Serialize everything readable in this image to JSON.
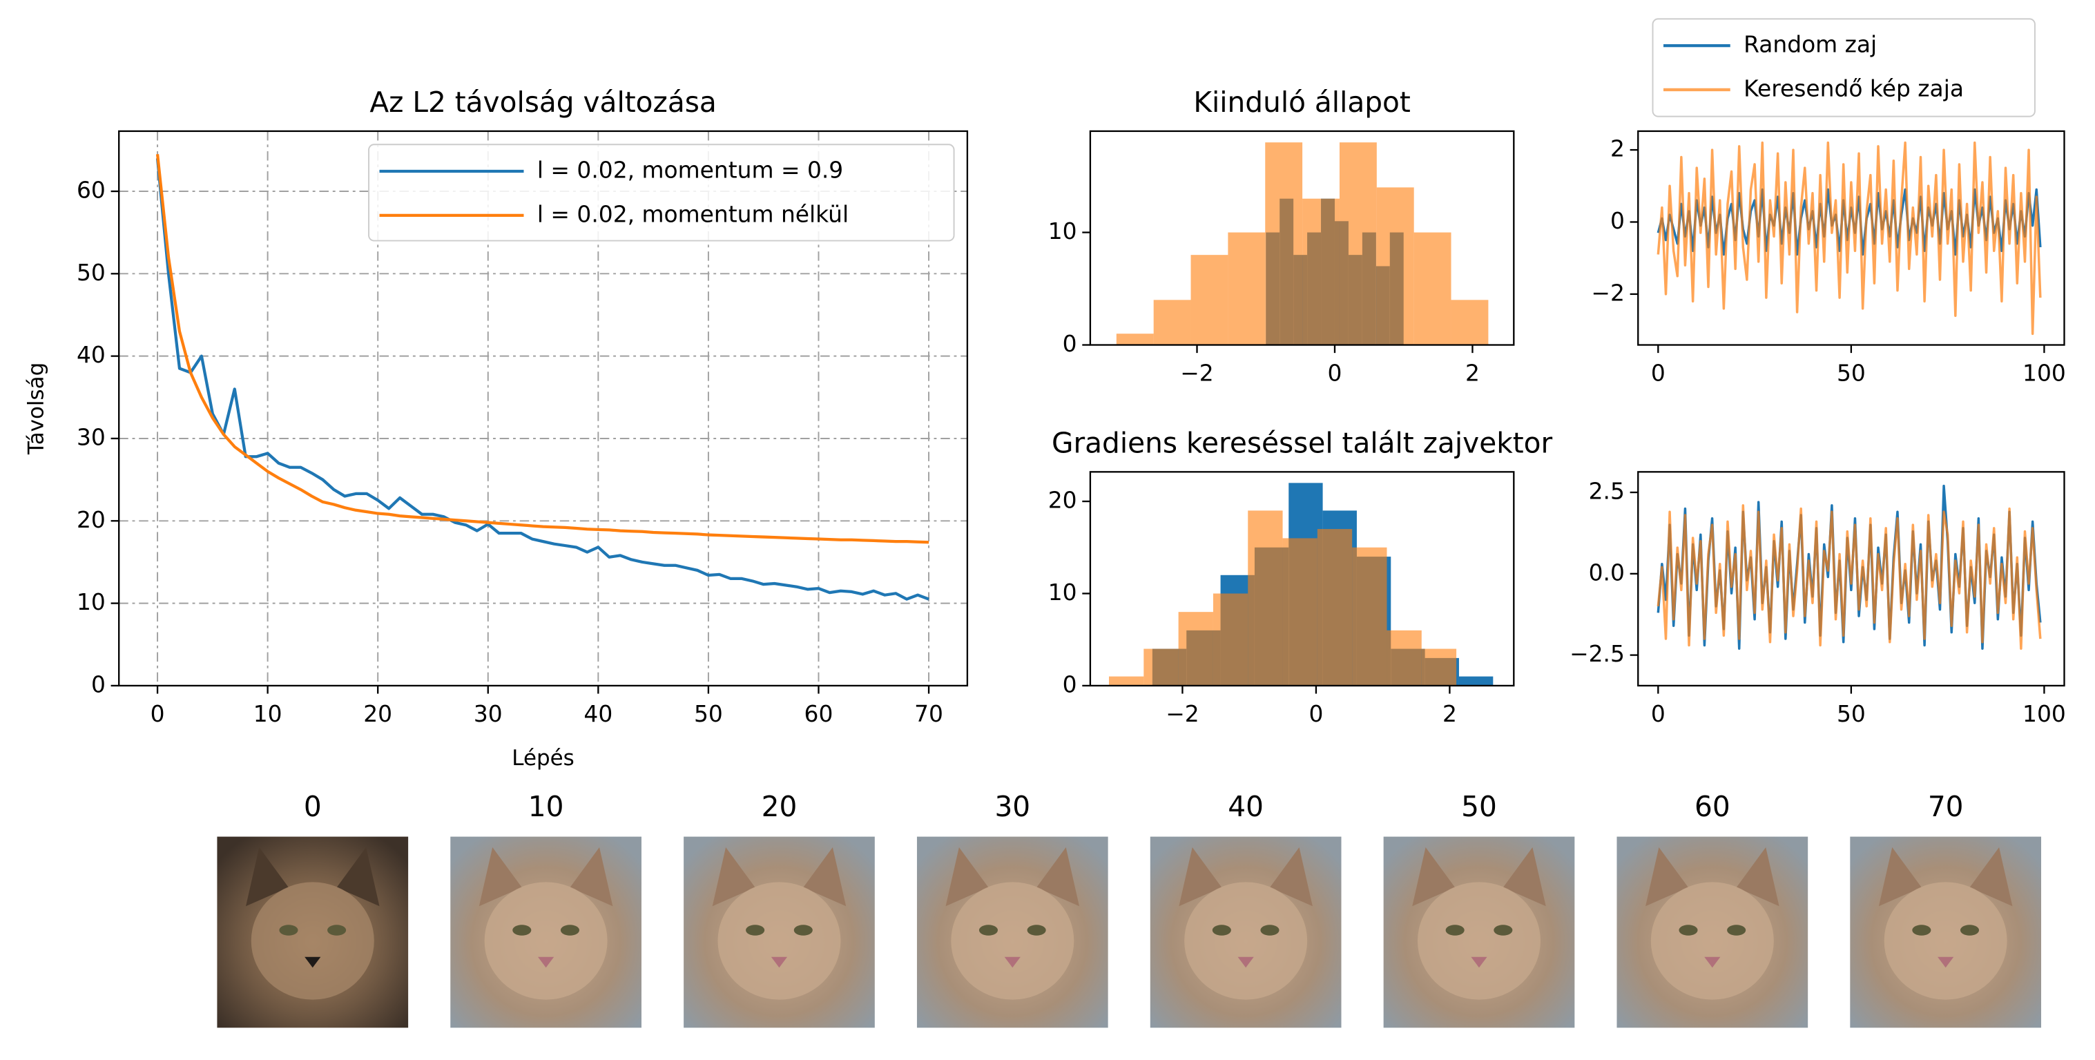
{
  "chart_data": [
    {
      "type": "line",
      "title": "Az L2 távolság változása",
      "xlabel": "Lépés",
      "ylabel": "Távolság",
      "x": [
        0,
        1,
        2,
        3,
        4,
        5,
        6,
        7,
        8,
        9,
        10,
        11,
        12,
        13,
        14,
        15,
        16,
        17,
        18,
        19,
        20,
        21,
        22,
        23,
        24,
        25,
        26,
        27,
        28,
        29,
        30,
        31,
        32,
        33,
        34,
        35,
        36,
        37,
        38,
        39,
        40,
        41,
        42,
        43,
        44,
        45,
        46,
        47,
        48,
        49,
        50,
        51,
        52,
        53,
        54,
        55,
        56,
        57,
        58,
        59,
        60,
        61,
        62,
        63,
        64,
        65,
        66,
        67,
        68,
        69,
        70
      ],
      "series": [
        {
          "name": "l = 0.02, momentum = 0.9",
          "color": "#1f77b4",
          "values": [
            64,
            50,
            38.5,
            38,
            40,
            33,
            30.5,
            36,
            27.8,
            27.8,
            28.2,
            27,
            26.5,
            26.5,
            25.8,
            25,
            23.8,
            23,
            23.3,
            23.3,
            22.5,
            21.5,
            22.8,
            21.8,
            20.8,
            20.8,
            20.5,
            19.8,
            19.5,
            18.8,
            19.6,
            18.5,
            18.5,
            18.5,
            17.8,
            17.5,
            17.2,
            17,
            16.8,
            16.2,
            16.8,
            15.6,
            15.8,
            15.3,
            15,
            14.8,
            14.6,
            14.6,
            14.3,
            14,
            13.4,
            13.5,
            13,
            13,
            12.7,
            12.3,
            12.4,
            12.2,
            12,
            11.7,
            11.8,
            11.3,
            11.5,
            11.4,
            11.1,
            11.5,
            11,
            11.2,
            10.5,
            11,
            10.5
          ]
        },
        {
          "name": "l = 0.02, momentum nélkül",
          "color": "#ff7f0e",
          "values": [
            64.5,
            52,
            43,
            38,
            35,
            32.5,
            30.5,
            29,
            28,
            27,
            26,
            25.2,
            24.5,
            23.8,
            23,
            22.3,
            22,
            21.6,
            21.3,
            21.1,
            20.9,
            20.8,
            20.6,
            20.5,
            20.4,
            20.3,
            20.2,
            20.1,
            20,
            19.9,
            19.8,
            19.7,
            19.6,
            19.5,
            19.4,
            19.3,
            19.25,
            19.2,
            19.1,
            19,
            18.95,
            18.9,
            18.8,
            18.75,
            18.7,
            18.6,
            18.55,
            18.5,
            18.45,
            18.4,
            18.3,
            18.25,
            18.2,
            18.15,
            18.1,
            18.05,
            18,
            17.95,
            17.9,
            17.85,
            17.8,
            17.75,
            17.7,
            17.7,
            17.65,
            17.6,
            17.55,
            17.5,
            17.5,
            17.45,
            17.4
          ]
        }
      ],
      "xlim": [
        -3.5,
        73.5
      ],
      "ylim": [
        0,
        67.3
      ],
      "xticks": [
        0,
        10,
        20,
        30,
        40,
        50,
        60,
        70
      ],
      "yticks": [
        0,
        10,
        20,
        30,
        40,
        50,
        60
      ],
      "grid": true,
      "legend": "upper right"
    },
    {
      "type": "histogram",
      "title": "Kiinduló állapot",
      "series": [
        {
          "color": "#1f77b4",
          "opacity": 1,
          "bins": [
            -1,
            -0.8,
            -0.6,
            -0.4,
            -0.2,
            0,
            0.2,
            0.4,
            0.6,
            0.8,
            1
          ],
          "values": [
            10,
            13,
            8,
            10,
            13,
            11,
            8,
            10,
            7,
            10
          ]
        },
        {
          "color": "#ff7f0e",
          "opacity": 0.6,
          "bins": [
            -3.17,
            -2.63,
            -2.09,
            -1.55,
            -1.01,
            -0.47,
            0.07,
            0.61,
            1.15,
            1.69,
            2.23
          ],
          "values": [
            1,
            4,
            8,
            10,
            18,
            13,
            18,
            14,
            10,
            4
          ]
        }
      ],
      "xlim": [
        -3.55,
        2.6
      ],
      "ylim": [
        0,
        19
      ],
      "xticks": [
        {
          "value": -2,
          "label": "−2"
        },
        0,
        2
      ],
      "yticks": [
        0,
        10
      ]
    },
    {
      "type": "line",
      "x": [
        0,
        1,
        2,
        3,
        4,
        5,
        6,
        7,
        8,
        9,
        10,
        11,
        12,
        13,
        14,
        15,
        16,
        17,
        18,
        19,
        20,
        21,
        22,
        23,
        24,
        25,
        26,
        27,
        28,
        29,
        30,
        31,
        32,
        33,
        34,
        35,
        36,
        37,
        38,
        39,
        40,
        41,
        42,
        43,
        44,
        45,
        46,
        47,
        48,
        49,
        50,
        51,
        52,
        53,
        54,
        55,
        56,
        57,
        58,
        59,
        60,
        61,
        62,
        63,
        64,
        65,
        66,
        67,
        68,
        69,
        70,
        71,
        72,
        73,
        74,
        75,
        76,
        77,
        78,
        79,
        80,
        81,
        82,
        83,
        84,
        85,
        86,
        87,
        88,
        89,
        90,
        91,
        92,
        93,
        94,
        95,
        96,
        97,
        98,
        99
      ],
      "series": [
        {
          "name": "Random zaj",
          "color": "#1f77b4",
          "opacity": 1,
          "values": [
            -0.3,
            0.1,
            -0.5,
            0.2,
            -0.2,
            -0.6,
            0.5,
            -0.4,
            0.3,
            -0.8,
            0.6,
            -0.1,
            0.4,
            -0.7,
            0.7,
            -0.3,
            0.2,
            -0.9,
            0.1,
            0.5,
            -0.5,
            0.8,
            -0.2,
            -0.6,
            0.3,
            0.6,
            -0.4,
            0.9,
            -0.8,
            0.2,
            -0.1,
            0.7,
            -0.6,
            0.4,
            -0.3,
            0.8,
            -0.9,
            0.1,
            0.6,
            -0.2,
            0.3,
            -0.7,
            0.5,
            -0.4,
            0.9,
            -0.1,
            0.2,
            -0.8,
            0.6,
            -0.5,
            0.4,
            -0.3,
            0.7,
            -0.9,
            0.1,
            0.5,
            -0.6,
            0.8,
            -0.2,
            0.3,
            -0.4,
            0.6,
            -0.7,
            0.2,
            0.9,
            -0.5,
            0.1,
            -0.3,
            0.7,
            -0.8,
            0.4,
            -0.1,
            0.5,
            -0.6,
            0.8,
            -0.2,
            0.3,
            -0.9,
            0.6,
            -0.4,
            0.2,
            -0.7,
            0.9,
            -0.1,
            0.4,
            -0.5,
            0.7,
            -0.3,
            0.1,
            -0.8,
            0.6,
            -0.2,
            0.5,
            -0.6,
            0.3,
            -0.4,
            0.8,
            -0.1,
            0.9,
            -0.7
          ]
        },
        {
          "name": "Keresendő kép zaja",
          "color": "#ff7f0e",
          "opacity": 0.7,
          "values": [
            -0.9,
            0.4,
            -2.0,
            1.0,
            -0.8,
            -1.5,
            1.8,
            -1.2,
            0.8,
            -2.2,
            1.5,
            -0.3,
            1.2,
            -1.8,
            2.0,
            -0.9,
            0.6,
            -2.4,
            0.5,
            1.4,
            -1.3,
            2.1,
            -0.7,
            -1.6,
            0.9,
            1.6,
            -1.1,
            2.2,
            -2.1,
            0.6,
            -0.4,
            1.9,
            -1.7,
            1.1,
            -0.9,
            2.0,
            -2.5,
            0.4,
            1.5,
            -0.6,
            0.8,
            -1.9,
            1.3,
            -1.1,
            2.2,
            -0.3,
            0.6,
            -2.1,
            1.6,
            -1.4,
            1.1,
            -0.8,
            1.9,
            -2.4,
            0.3,
            1.3,
            -1.7,
            2.1,
            -0.6,
            0.9,
            -1.1,
            1.7,
            -1.9,
            0.6,
            2.2,
            -1.3,
            0.4,
            -0.9,
            1.8,
            -2.2,
            1.0,
            -0.4,
            1.3,
            -1.6,
            2.0,
            -0.6,
            0.9,
            -2.6,
            1.6,
            -1.1,
            0.5,
            -1.9,
            2.2,
            -0.3,
            1.1,
            -1.4,
            1.8,
            -0.8,
            0.3,
            -2.2,
            1.5,
            -0.6,
            1.3,
            -1.7,
            0.8,
            -1.1,
            2.0,
            -3.1,
            0.7,
            -2.1
          ]
        }
      ],
      "xlim": [
        -5.2,
        105.2
      ],
      "ylim": [
        -3.41,
        2.52
      ],
      "xticks": [
        0,
        50,
        100
      ],
      "yticks": [
        {
          "value": -2,
          "label": "−2"
        },
        0,
        2
      ],
      "legend": "above"
    },
    {
      "type": "histogram",
      "title": "Gradiens kereséssel talált zajvektor",
      "series": [
        {
          "color": "#1f77b4",
          "opacity": 1,
          "bins": [
            -2.45,
            -1.94,
            -1.43,
            -0.92,
            -0.41,
            0.1,
            0.61,
            1.12,
            1.63,
            2.14,
            2.65
          ],
          "values": [
            4,
            6,
            12,
            15,
            22,
            19,
            14,
            4,
            3,
            1
          ]
        },
        {
          "color": "#ff7f0e",
          "opacity": 0.6,
          "bins": [
            -3.1,
            -2.58,
            -2.06,
            -1.54,
            -1.02,
            -0.5,
            0.02,
            0.54,
            1.06,
            1.58,
            2.1
          ],
          "values": [
            1,
            4,
            8,
            10,
            19,
            16,
            17,
            15,
            6,
            4
          ]
        }
      ],
      "xlim": [
        -3.38,
        2.96
      ],
      "ylim": [
        0,
        23.2
      ],
      "xticks": [
        {
          "value": -2,
          "label": "−2"
        },
        0,
        2
      ],
      "yticks": [
        0,
        10,
        20
      ]
    },
    {
      "type": "line",
      "x": [
        0,
        1,
        2,
        3,
        4,
        5,
        6,
        7,
        8,
        9,
        10,
        11,
        12,
        13,
        14,
        15,
        16,
        17,
        18,
        19,
        20,
        21,
        22,
        23,
        24,
        25,
        26,
        27,
        28,
        29,
        30,
        31,
        32,
        33,
        34,
        35,
        36,
        37,
        38,
        39,
        40,
        41,
        42,
        43,
        44,
        45,
        46,
        47,
        48,
        49,
        50,
        51,
        52,
        53,
        54,
        55,
        56,
        57,
        58,
        59,
        60,
        61,
        62,
        63,
        64,
        65,
        66,
        67,
        68,
        69,
        70,
        71,
        72,
        73,
        74,
        75,
        76,
        77,
        78,
        79,
        80,
        81,
        82,
        83,
        84,
        85,
        86,
        87,
        88,
        89,
        90,
        91,
        92,
        93,
        94,
        95,
        96,
        97,
        98,
        99
      ],
      "series": [
        {
          "color": "#1f77b4",
          "opacity": 1,
          "values": [
            -1.2,
            0.3,
            -0.8,
            1.5,
            -1.6,
            0.6,
            -0.3,
            2.0,
            -1.9,
            0.9,
            -0.5,
            1.2,
            -2.2,
            0.4,
            1.7,
            -1.0,
            0.1,
            -1.7,
            1.3,
            -0.6,
            0.8,
            -2.3,
            1.9,
            -0.2,
            0.5,
            -1.4,
            2.2,
            -0.9,
            0.2,
            -1.8,
            1.0,
            -0.4,
            1.6,
            -2.0,
            0.7,
            -1.1,
            0.3,
            1.8,
            -1.5,
            0.6,
            -0.7,
            1.4,
            -1.9,
            0.9,
            -0.1,
            2.1,
            -1.2,
            0.4,
            -2.1,
            1.1,
            -0.5,
            1.7,
            -1.3,
            0.2,
            -0.8,
            1.5,
            -1.7,
            0.8,
            -0.3,
            1.2,
            -2.0,
            0.5,
            1.9,
            -0.9,
            0.1,
            -1.5,
            1.3,
            -0.6,
            0.9,
            -2.2,
            1.6,
            -0.2,
            0.4,
            -1.1,
            2.7,
            1.0,
            -1.8,
            0.6,
            -0.4,
            1.4,
            -1.6,
            0.2,
            -0.9,
            1.7,
            -2.3,
            0.7,
            -0.1,
            1.2,
            -1.4,
            0.5,
            -0.7,
            1.9,
            -1.2,
            0.3,
            -1.9,
            1.1,
            -0.5,
            1.6,
            -0.3,
            -1.5
          ]
        },
        {
          "color": "#ff7f0e",
          "opacity": 0.7,
          "values": [
            -1.0,
            0.2,
            -2.0,
            1.9,
            -1.4,
            0.8,
            -0.5,
            1.8,
            -2.2,
            1.1,
            -0.3,
            1.0,
            -2.0,
            0.6,
            1.5,
            -1.2,
            0.3,
            -1.9,
            1.6,
            -0.4,
            0.6,
            -2.0,
            2.1,
            -0.5,
            0.7,
            -1.2,
            1.9,
            -1.1,
            0.4,
            -2.1,
            1.2,
            -0.2,
            1.4,
            -1.8,
            0.9,
            -1.3,
            0.1,
            2.0,
            -1.3,
            0.4,
            -0.9,
            1.6,
            -2.2,
            0.7,
            0.1,
            1.9,
            -1.4,
            0.6,
            -1.9,
            1.3,
            -0.3,
            1.5,
            -1.1,
            0.4,
            -1.0,
            1.7,
            -1.5,
            0.6,
            -0.5,
            1.4,
            -2.1,
            0.3,
            1.7,
            -1.1,
            0.3,
            -1.3,
            1.5,
            -0.8,
            0.7,
            -2.0,
            1.8,
            -0.4,
            0.6,
            -0.9,
            1.9,
            1.2,
            -1.6,
            0.4,
            -0.6,
            1.6,
            -1.8,
            0.4,
            -0.7,
            1.5,
            -2.1,
            0.9,
            -0.3,
            1.4,
            -1.2,
            0.3,
            -0.9,
            2.0,
            -1.4,
            0.5,
            -2.3,
            1.3,
            -0.3,
            1.4,
            -0.5,
            -2.0
          ]
        }
      ],
      "xlim": [
        -5.2,
        105.2
      ],
      "ylim": [
        -3.44,
        3.13
      ],
      "xticks": [
        0,
        50,
        100
      ],
      "yticks": [
        {
          "value": -2.5,
          "label": "−2.5"
        },
        {
          "value": 0,
          "label": "0.0"
        },
        {
          "value": 2.5,
          "label": "2.5"
        }
      ]
    }
  ],
  "images": [
    {
      "title": "0"
    },
    {
      "title": "10"
    },
    {
      "title": "20"
    },
    {
      "title": "30"
    },
    {
      "title": "40"
    },
    {
      "title": "50"
    },
    {
      "title": "60"
    },
    {
      "title": "70"
    }
  ]
}
